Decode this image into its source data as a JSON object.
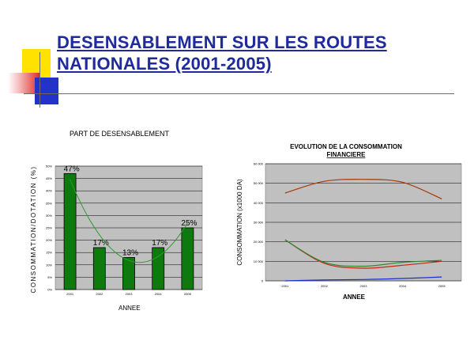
{
  "slide": {
    "title_line1": "DESENSABLEMENT SUR LES ROUTES",
    "title_line2": "NATIONALES (2001-2005)"
  },
  "colors": {
    "title": "#1f2a9b",
    "bar": "#0e7a0e",
    "plot_bg": "#c0c0c0",
    "trend": "#2e9a2e",
    "line_top": "#a33a0c",
    "line_mid_red": "#c0281b",
    "line_mid_green": "#2e8b2e",
    "line_blue": "#1a2fd0"
  },
  "chart_data": [
    {
      "type": "bar",
      "title": "PART DE DESENSABLEMENT",
      "xlabel": "ANNEE",
      "ylabel": "CONSOMMATION/DOTATION (%)",
      "categories": [
        "2001",
        "2002",
        "2003",
        "2004",
        "2005"
      ],
      "values": [
        47,
        17,
        13,
        17,
        25
      ],
      "data_labels": [
        "47%",
        "17%",
        "13%",
        "17%",
        "25%"
      ],
      "ylim": [
        0,
        50
      ],
      "yticks": [
        "0%",
        "5%",
        "10%",
        "15%",
        "20%",
        "25%",
        "30%",
        "35%",
        "40%",
        "45%",
        "50%"
      ],
      "grid": true,
      "trendline": true
    },
    {
      "type": "line",
      "title_line1": "EVOLUTION DE LA CONSOMMATION",
      "title_line2": "FINANCIERE",
      "xlabel": "ANNEE",
      "ylabel": "CONSOMMATION (x1000 DA)",
      "categories": [
        "2001",
        "2002",
        "2003",
        "2004",
        "2005"
      ],
      "ylim": [
        0,
        60000
      ],
      "yticks": [
        "0",
        "10 000",
        "20 000",
        "30 000",
        "40 000",
        "50 000",
        "60 000"
      ],
      "grid": true,
      "series": [
        {
          "values": [
            45000,
            51000,
            52000,
            50500,
            42000
          ],
          "color": "#a33a0c"
        },
        {
          "values": [
            21000,
            9000,
            6500,
            8000,
            10000
          ],
          "color": "#c0281b"
        },
        {
          "values": [
            21000,
            9500,
            7500,
            9500,
            10500
          ],
          "color": "#2e8b2e"
        },
        {
          "values": [
            0,
            500,
            700,
            1200,
            2000
          ],
          "color": "#1a2fd0"
        }
      ]
    }
  ]
}
